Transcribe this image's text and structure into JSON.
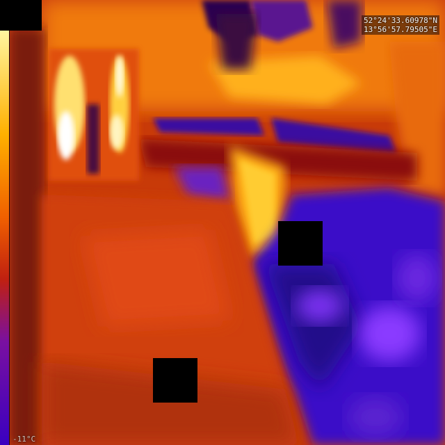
{
  "thermal_view": {
    "gps_line1": "52°24'33.60978\"N",
    "gps_line2": "13°56'57.79505\"E",
    "temp_min_label": "-11°C",
    "palette": [
      "#1a0030",
      "#3d00a8",
      "#7a22ff",
      "#b01010",
      "#e03000",
      "#ff7a00",
      "#ffb400",
      "#ffe060",
      "#ffffff"
    ]
  }
}
